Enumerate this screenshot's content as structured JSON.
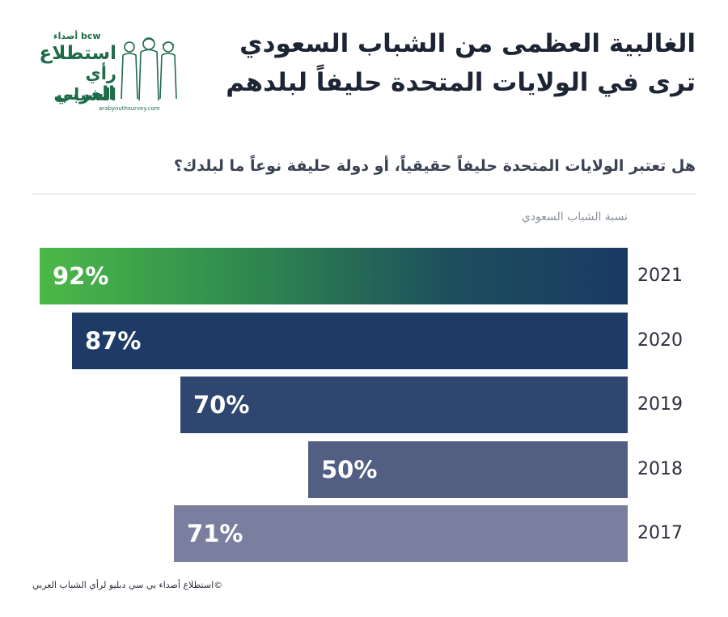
{
  "header": {
    "title_line1": "الغالبية العظمى من الشباب السعودي",
    "title_line2": "ترى في الولايات المتحدة حليفاً لبلدهم"
  },
  "logo": {
    "brand": "bcw أصداء",
    "line1": "استطلاع",
    "line2": "رأي الشباب",
    "line3": "العربي",
    "url": "arabyouthsurvey.com",
    "color": "#1f6b4a"
  },
  "question": "هل تعتبر الولايات المتحدة حليفاً حقيقياً، أو دولة حليفة نوعاً ما لبلدك؟",
  "series_label": "نسبة الشباب السعودي",
  "footer": "©استطلاع أصداء بي سي دبليو لرأي الشباب العربي",
  "chart_data": {
    "type": "bar",
    "orientation": "horizontal",
    "categories": [
      "2021",
      "2020",
      "2019",
      "2018",
      "2017"
    ],
    "values": [
      92,
      87,
      70,
      50,
      71
    ],
    "value_labels": [
      "92%",
      "87%",
      "70%",
      "50%",
      "71%"
    ],
    "series": [
      {
        "name": "نسبة الشباب السعودي",
        "values": [
          92,
          87,
          70,
          50,
          71
        ]
      }
    ],
    "xlim": [
      0,
      100
    ],
    "grid": false,
    "colors": [
      "gradient:#4cb848-#1a3a63",
      "#1e3a66",
      "#2f4670",
      "#525f82",
      "#7a7fa0"
    ]
  }
}
